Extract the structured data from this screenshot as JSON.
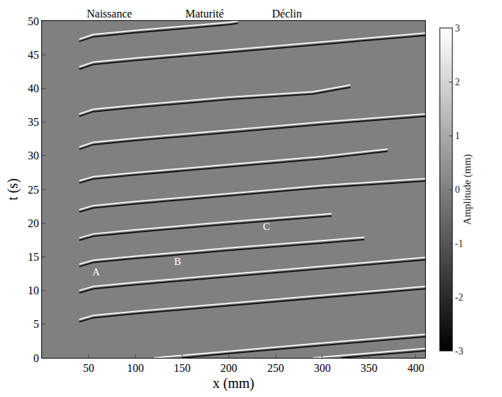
{
  "chart_data": {
    "type": "heatmap",
    "x_label": "x (mm)",
    "y_label": "t (s)",
    "xlim": [
      0,
      410
    ],
    "xticks": [
      50,
      100,
      150,
      200,
      250,
      300,
      350,
      400
    ],
    "ylim": [
      0,
      50
    ],
    "yticks": [
      0,
      5,
      10,
      15,
      20,
      25,
      30,
      35,
      40,
      45,
      50
    ],
    "colorbar_title": "Amplitude (mm)",
    "colorbar_range": [
      -3,
      3
    ],
    "colorbar_ticks": [
      -3,
      -2,
      -1,
      0,
      1,
      2,
      3
    ],
    "cells": [
      [
        0
      ]
    ],
    "cell_x_edges": [
      0,
      410
    ],
    "cell_y_edges": [
      0,
      50
    ],
    "phases": [
      {
        "text": "Naissance",
        "x": 72
      },
      {
        "text": "Maturité",
        "x": 174
      },
      {
        "text": "Déclin",
        "x": 262
      }
    ],
    "annotations": [
      {
        "text": "A",
        "x": 58,
        "y": 12.8
      },
      {
        "text": "B",
        "x": 145,
        "y": 14.3
      },
      {
        "text": "C",
        "x": 240,
        "y": 19.5
      }
    ],
    "series": [
      {
        "color": "#f2f2f2",
        "fronts": [
          {
            "x": [
              40,
              55,
              100,
              200,
              300,
              410
            ],
            "t": [
              5.7,
              6.3,
              6.9,
              8.1,
              9.3,
              10.6
            ]
          },
          {
            "x": [
              40,
              55,
              100,
              200,
              300,
              410
            ],
            "t": [
              10.0,
              10.6,
              11.2,
              12.4,
              13.6,
              14.9
            ]
          },
          {
            "x": [
              40,
              55,
              100,
              200,
              300,
              345
            ],
            "t": [
              13.9,
              14.5,
              15.1,
              16.3,
              17.4,
              17.9
            ]
          },
          {
            "x": [
              40,
              55,
              100,
              200,
              310
            ],
            "t": [
              17.8,
              18.4,
              19.0,
              20.2,
              21.4
            ]
          },
          {
            "x": [
              40,
              55,
              100,
              200,
              300,
              410
            ],
            "t": [
              22.0,
              22.6,
              23.2,
              24.4,
              25.6,
              26.6
            ]
          },
          {
            "x": [
              40,
              55,
              100,
              200,
              300,
              370
            ],
            "t": [
              26.3,
              26.9,
              27.5,
              28.7,
              29.9,
              31.0
            ]
          },
          {
            "x": [
              40,
              55,
              100,
              200,
              300,
              410
            ],
            "t": [
              31.3,
              32.0,
              32.6,
              33.8,
              35.0,
              36.2
            ]
          },
          {
            "x": [
              40,
              55,
              100,
              200,
              290,
              330
            ],
            "t": [
              36.2,
              36.9,
              37.5,
              38.7,
              39.5,
              40.5
            ]
          },
          {
            "x": [
              40,
              55,
              100,
              200,
              300,
              410
            ],
            "t": [
              43.2,
              43.9,
              44.5,
              45.7,
              46.9,
              48.2
            ]
          },
          {
            "x": [
              40,
              55,
              100,
              200,
              210
            ],
            "t": [
              47.3,
              48.0,
              48.6,
              49.8,
              50.0
            ]
          },
          {
            "x": [
              120,
              200,
              300,
              410
            ],
            "t": [
              0.0,
              1.0,
              2.2,
              3.5
            ]
          },
          {
            "x": [
              290,
              410
            ],
            "t": [
              0.0,
              1.4
            ]
          }
        ]
      },
      {
        "color": "#151515",
        "fronts": [
          {
            "x": [
              40,
              55,
              100,
              200,
              300,
              410
            ],
            "t": [
              5.35,
              5.95,
              6.55,
              7.75,
              8.95,
              10.25
            ]
          },
          {
            "x": [
              40,
              55,
              100,
              200,
              300,
              410
            ],
            "t": [
              9.65,
              10.25,
              10.85,
              12.05,
              13.25,
              14.55
            ]
          },
          {
            "x": [
              40,
              55,
              100,
              200,
              300,
              345
            ],
            "t": [
              13.55,
              14.15,
              14.75,
              15.95,
              17.05,
              17.55
            ]
          },
          {
            "x": [
              40,
              55,
              100,
              200,
              310
            ],
            "t": [
              17.45,
              18.05,
              18.65,
              19.85,
              21.05
            ]
          },
          {
            "x": [
              40,
              55,
              100,
              200,
              300,
              410
            ],
            "t": [
              21.65,
              22.25,
              22.85,
              24.05,
              25.25,
              26.25
            ]
          },
          {
            "x": [
              40,
              55,
              100,
              200,
              300,
              370
            ],
            "t": [
              25.95,
              26.55,
              27.15,
              28.35,
              29.55,
              30.65
            ]
          },
          {
            "x": [
              40,
              55,
              100,
              200,
              300,
              410
            ],
            "t": [
              30.95,
              31.65,
              32.25,
              33.45,
              34.65,
              35.85
            ]
          },
          {
            "x": [
              40,
              55,
              100,
              200,
              290,
              330
            ],
            "t": [
              35.85,
              36.55,
              37.15,
              38.35,
              39.15,
              40.15
            ]
          },
          {
            "x": [
              40,
              55,
              100,
              200,
              300,
              410
            ],
            "t": [
              42.85,
              43.55,
              44.15,
              45.35,
              46.55,
              47.85
            ]
          },
          {
            "x": [
              40,
              55,
              100,
              200,
              210
            ],
            "t": [
              46.95,
              47.65,
              48.25,
              49.45,
              49.65
            ]
          },
          {
            "x": [
              150,
              200,
              300,
              410
            ],
            "t": [
              0.0,
              0.65,
              1.85,
              3.15
            ]
          },
          {
            "x": [
              320,
              410
            ],
            "t": [
              0.0,
              1.05
            ]
          }
        ]
      }
    ]
  }
}
